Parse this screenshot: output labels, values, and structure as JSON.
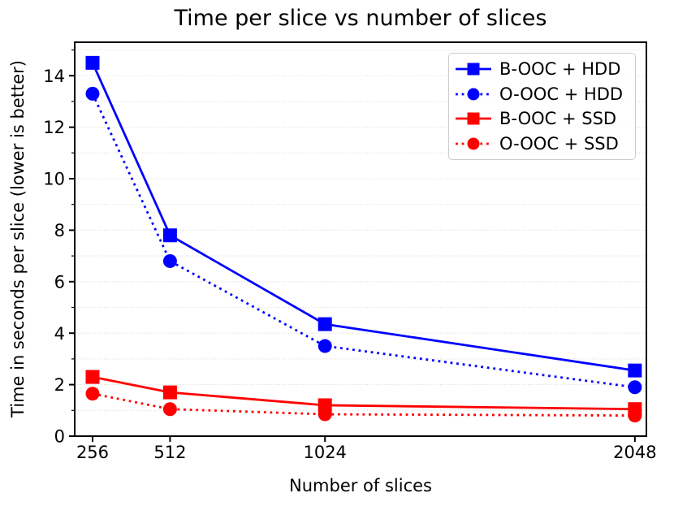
{
  "chart_data": {
    "type": "line",
    "title": "Time per slice vs number of slices",
    "xlabel": "Number of slices",
    "ylabel": "Time in seconds per slice (lower is better)",
    "x": [
      256,
      512,
      1024,
      2048
    ],
    "x_tick_labels": [
      "256",
      "512",
      "1024",
      "2048"
    ],
    "y_ticks": [
      0,
      2,
      4,
      6,
      8,
      10,
      12,
      14
    ],
    "y_minor_ticks": [
      1,
      3,
      5,
      7,
      9,
      11,
      13,
      15
    ],
    "xlim": [
      197,
      2086
    ],
    "ylim": [
      0,
      15.3
    ],
    "x_scale": "linear",
    "grid": {
      "axis": "y",
      "linestyle": "dotted",
      "interval": 1,
      "color": "#d6d6d6"
    },
    "legend_position": "upper right",
    "series": [
      {
        "name": "B-OOC + HDD",
        "color": "#0000ff",
        "linestyle": "solid",
        "marker": "square",
        "values": [
          14.5,
          7.8,
          4.35,
          2.55
        ]
      },
      {
        "name": "O-OOC + HDD",
        "color": "#0000ff",
        "linestyle": "dotted",
        "marker": "circle",
        "values": [
          13.3,
          6.8,
          3.5,
          1.9
        ]
      },
      {
        "name": "B-OOC + SSD",
        "color": "#ff0000",
        "linestyle": "solid",
        "marker": "square",
        "values": [
          2.3,
          1.7,
          1.2,
          1.05
        ]
      },
      {
        "name": "O-OOC + SSD",
        "color": "#ff0000",
        "linestyle": "dotted",
        "marker": "circle",
        "values": [
          1.65,
          1.05,
          0.85,
          0.8
        ]
      }
    ],
    "colors": {
      "axis": "#000000",
      "background": "#ffffff",
      "blue": "#0000ff",
      "red": "#ff0000"
    }
  }
}
